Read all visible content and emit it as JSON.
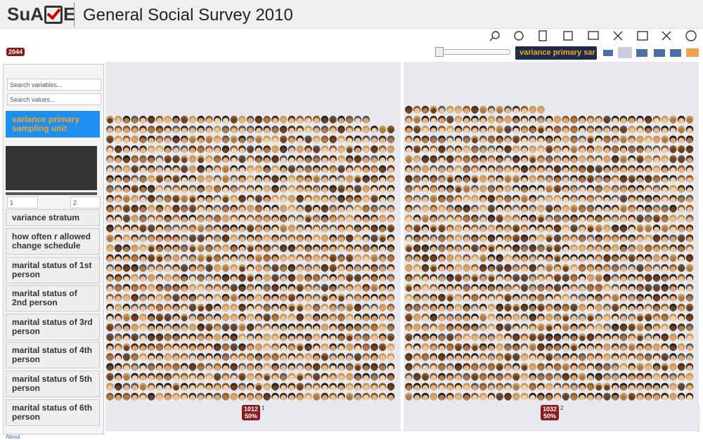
{
  "header": {
    "logo_start": "SuA",
    "logo_end": "E",
    "title": "General Social Survey 2010"
  },
  "toolbar": {
    "count": "2044",
    "search_box": "variance primary sar"
  },
  "sidebar": {
    "search_variables": "Search variables...",
    "search_values": "Search values...",
    "selected": "variance primary sampling unit",
    "range_min": "1",
    "range_max": "2",
    "variables": [
      "variance stratum",
      "how often r allowed change schedule",
      "marital status of 1st person",
      "marital status of 2nd person",
      "marital status of 3rd person",
      "marital status of 4th person",
      "marital status of 5th person",
      "marital status of 6th person"
    ]
  },
  "columns": [
    {
      "count": 1012,
      "percent": "50%",
      "label": "1"
    },
    {
      "count": 1032,
      "percent": "50%",
      "label": "2"
    }
  ],
  "footer": {
    "about": "About"
  }
}
